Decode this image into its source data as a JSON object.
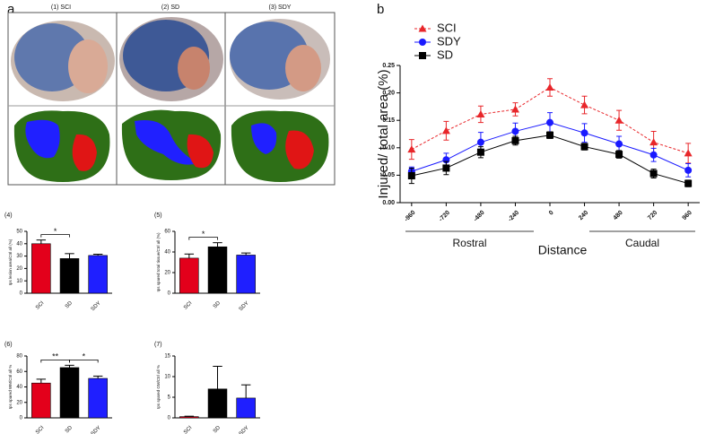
{
  "panel_labels": [
    "a",
    "b"
  ],
  "histology": {
    "labels": [
      "(1)  SCI",
      "(2) SD",
      "(3) SDY"
    ]
  },
  "chart_data": [
    {
      "type": "bar",
      "title": "(4)",
      "ylabel": "Ips lesion area/Ctrl all (%)",
      "categories": [
        "SCI",
        "SD",
        "SDY"
      ],
      "values": [
        40,
        28,
        30.5
      ],
      "errors": [
        3,
        4,
        1
      ],
      "colors": [
        "#e3001b",
        "#000000",
        "#1f1fff"
      ],
      "ylim": [
        0,
        50
      ],
      "yticks": [
        0,
        10,
        20,
        30,
        40,
        50
      ],
      "annotations": [
        {
          "text": "*",
          "from": 0,
          "to": 1
        }
      ]
    },
    {
      "type": "bar",
      "title": "(5)",
      "ylabel": "Ips spared total tissue/Ctrl all (%)",
      "categories": [
        "SCI",
        "SD",
        "SDY"
      ],
      "values": [
        34,
        45,
        37
      ],
      "errors": [
        4,
        4,
        2
      ],
      "colors": [
        "#e3001b",
        "#000000",
        "#1f1fff"
      ],
      "ylim": [
        0,
        60
      ],
      "yticks": [
        0,
        20,
        40,
        60
      ],
      "annotations": [
        {
          "text": "*",
          "from": 0,
          "to": 1
        }
      ]
    },
    {
      "type": "bar",
      "title": "(6)",
      "ylabel": "Ips spared WM/Ctrl all %",
      "categories": [
        "SCI",
        "SD",
        "SDY"
      ],
      "values": [
        45,
        65,
        51
      ],
      "errors": [
        5,
        3,
        3
      ],
      "colors": [
        "#e3001b",
        "#000000",
        "#1f1fff"
      ],
      "ylim": [
        0,
        80
      ],
      "yticks": [
        0,
        20,
        40,
        60,
        80
      ],
      "annotations": [
        {
          "text": "**",
          "from": 0,
          "to": 1
        },
        {
          "text": "*",
          "from": 1,
          "to": 2
        }
      ]
    },
    {
      "type": "bar",
      "title": "(7)",
      "ylabel": "Ips spared GM/Ctrl all %",
      "categories": [
        "SCI",
        "SD",
        "SDY"
      ],
      "values": [
        0.3,
        7,
        4.8
      ],
      "errors": [
        0.1,
        5.5,
        3.2
      ],
      "colors": [
        "#e3001b",
        "#000000",
        "#1f1fff"
      ],
      "ylim": [
        0,
        15
      ],
      "yticks": [
        0,
        5,
        10,
        15
      ],
      "annotations": []
    },
    {
      "type": "line",
      "ylabel": "Injured/ total area (%)",
      "xlabel": "Distance",
      "groups": [
        "Rostral",
        "Caudal"
      ],
      "x": [
        -960,
        -720,
        -480,
        -240,
        0,
        240,
        480,
        720,
        960
      ],
      "xlim": [
        -1040,
        1040
      ],
      "xticks": [
        -960,
        -720,
        -480,
        -240,
        0,
        240,
        480,
        720,
        960
      ],
      "ylim": [
        0,
        0.25
      ],
      "yticks": [
        {
          "value": 0,
          "label": "0.00"
        },
        0.05,
        {
          "value": 0.1,
          "label": "0.10"
        },
        0.15,
        {
          "value": 0.2,
          "label": "0.20"
        },
        0.25
      ],
      "series": [
        {
          "name": "SCI",
          "color": "#e8262a",
          "marker": "triangle",
          "linestyle": "dashed",
          "values": [
            0.097,
            0.131,
            0.161,
            0.17,
            0.21,
            0.178,
            0.15,
            0.11,
            0.09
          ],
          "errors": [
            0.018,
            0.017,
            0.015,
            0.012,
            0.016,
            0.016,
            0.018,
            0.02,
            0.018
          ]
        },
        {
          "name": "SDY",
          "color": "#1a1aff",
          "marker": "circle",
          "linestyle": "solid",
          "values": [
            0.057,
            0.078,
            0.11,
            0.13,
            0.146,
            0.127,
            0.107,
            0.087,
            0.059
          ],
          "errors": [
            0.008,
            0.012,
            0.018,
            0.015,
            0.018,
            0.017,
            0.014,
            0.012,
            0.012
          ]
        },
        {
          "name": "SD",
          "color": "#000000",
          "marker": "square",
          "linestyle": "solid",
          "values": [
            0.049,
            0.063,
            0.092,
            0.113,
            0.123,
            0.102,
            0.088,
            0.053,
            0.035
          ],
          "errors": [
            0.014,
            0.012,
            0.01,
            0.008,
            0.006,
            0.006,
            0.007,
            0.008,
            0.006
          ]
        }
      ]
    }
  ]
}
